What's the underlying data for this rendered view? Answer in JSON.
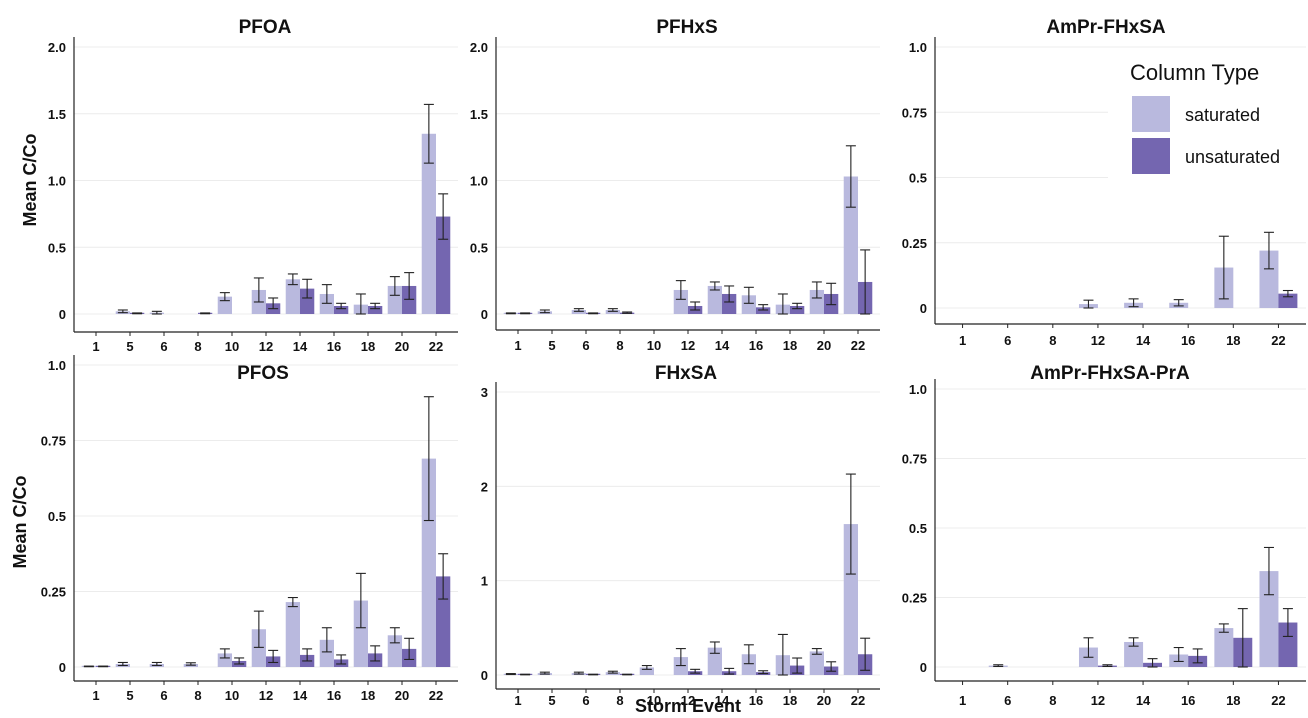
{
  "axis_labels": {
    "y": "Mean C/Co",
    "x": "Storm Event"
  },
  "colors": {
    "saturated": "#b9b9de",
    "unsaturated": "#7466b0",
    "grid": "#ececec",
    "axis": "#222222"
  },
  "legend": {
    "title": "Column Type",
    "placement": "top-right",
    "entries": [
      {
        "key": "saturated",
        "label": "saturated"
      },
      {
        "key": "unsaturated",
        "label": "unsaturated"
      }
    ]
  },
  "chart_data": [
    {
      "type": "bar",
      "title": "PFOA",
      "categories": [
        "1",
        "5",
        "6",
        "8",
        "10",
        "12",
        "14",
        "16",
        "18",
        "20",
        "22"
      ],
      "ylim": [
        0,
        2.0
      ],
      "yticks": [
        "0",
        "0.5",
        "1.0",
        "1.5",
        "2.0"
      ],
      "ytick_values": [
        0,
        0.5,
        1.0,
        1.5,
        2.0
      ],
      "grid": true,
      "series": [
        {
          "name": "saturated",
          "values": [
            null,
            0.02,
            0.01,
            null,
            0.13,
            0.18,
            0.26,
            0.15,
            0.07,
            0.21,
            1.35
          ],
          "err": [
            null,
            0.01,
            0.01,
            null,
            0.03,
            0.09,
            0.04,
            0.07,
            0.08,
            0.07,
            0.22
          ]
        },
        {
          "name": "unsaturated",
          "values": [
            null,
            0.005,
            null,
            0.005,
            null,
            0.08,
            0.19,
            0.06,
            0.06,
            0.21,
            0.73
          ],
          "err": [
            null,
            0.003,
            null,
            0.003,
            null,
            0.04,
            0.07,
            0.02,
            0.02,
            0.1,
            0.17
          ]
        }
      ]
    },
    {
      "type": "bar",
      "title": "PFHxS",
      "categories": [
        "1",
        "5",
        "6",
        "8",
        "10",
        "12",
        "14",
        "16",
        "18",
        "20",
        "22"
      ],
      "ylim": [
        0,
        2.0
      ],
      "yticks": [
        "0",
        "0.5",
        "1.0",
        "1.5",
        "2.0"
      ],
      "ytick_values": [
        0,
        0.5,
        1.0,
        1.5,
        2.0
      ],
      "grid": true,
      "series": [
        {
          "name": "saturated",
          "values": [
            0.005,
            0.02,
            0.03,
            0.03,
            null,
            0.18,
            0.21,
            0.14,
            0.07,
            0.18,
            1.03
          ],
          "err": [
            0.003,
            0.01,
            0.01,
            0.01,
            null,
            0.07,
            0.03,
            0.06,
            0.08,
            0.06,
            0.23
          ]
        },
        {
          "name": "unsaturated",
          "values": [
            0.005,
            null,
            0.005,
            0.01,
            null,
            0.06,
            0.15,
            0.05,
            0.06,
            0.15,
            0.24
          ],
          "err": [
            0.003,
            null,
            0.003,
            0.005,
            null,
            0.03,
            0.06,
            0.02,
            0.02,
            0.08,
            0.24
          ]
        }
      ]
    },
    {
      "type": "bar",
      "title": "AmPr-FHxSA",
      "categories": [
        "1",
        "6",
        "8",
        "12",
        "14",
        "16",
        "18",
        "22"
      ],
      "ylim": [
        0,
        1.0
      ],
      "yticks": [
        "0",
        "0.25",
        "0.5",
        "0.75",
        "1.0"
      ],
      "ytick_values": [
        0,
        0.25,
        0.5,
        0.75,
        1.0
      ],
      "grid": true,
      "series": [
        {
          "name": "saturated",
          "values": [
            null,
            null,
            null,
            0.015,
            0.02,
            0.02,
            0.155,
            0.22
          ],
          "err": [
            null,
            null,
            null,
            0.015,
            0.015,
            0.012,
            0.12,
            0.07
          ]
        },
        {
          "name": "unsaturated",
          "values": [
            null,
            null,
            null,
            null,
            null,
            null,
            null,
            0.055
          ],
          "err": [
            null,
            null,
            null,
            null,
            null,
            null,
            null,
            0.012
          ]
        }
      ]
    },
    {
      "type": "bar",
      "title": "PFOS",
      "categories": [
        "1",
        "5",
        "6",
        "8",
        "10",
        "12",
        "14",
        "16",
        "18",
        "20",
        "22"
      ],
      "ylim": [
        0,
        1.0
      ],
      "yticks": [
        "0",
        "0.25",
        "0.5",
        "0.75",
        "1.0"
      ],
      "ytick_values": [
        0,
        0.25,
        0.5,
        0.75,
        1.0
      ],
      "grid": true,
      "series": [
        {
          "name": "saturated",
          "values": [
            0.002,
            0.01,
            0.01,
            0.01,
            0.045,
            0.125,
            0.215,
            0.09,
            0.22,
            0.105,
            0.69
          ],
          "err": [
            0.001,
            0.005,
            0.005,
            0.004,
            0.015,
            0.06,
            0.015,
            0.04,
            0.09,
            0.025,
            0.205
          ]
        },
        {
          "name": "unsaturated",
          "values": [
            0.002,
            null,
            null,
            null,
            0.02,
            0.035,
            0.04,
            0.025,
            0.045,
            0.06,
            0.3
          ],
          "err": [
            0.001,
            null,
            null,
            null,
            0.01,
            0.02,
            0.02,
            0.015,
            0.025,
            0.035,
            0.075
          ]
        }
      ]
    },
    {
      "type": "bar",
      "title": "FHxSA",
      "categories": [
        "1",
        "5",
        "6",
        "8",
        "10",
        "12",
        "14",
        "16",
        "18",
        "20",
        "22"
      ],
      "ylim": [
        0,
        3.0
      ],
      "yticks": [
        "0",
        "1",
        "2",
        "3"
      ],
      "ytick_values": [
        0,
        1,
        2,
        3
      ],
      "grid": true,
      "series": [
        {
          "name": "saturated",
          "values": [
            0.01,
            0.02,
            0.02,
            0.03,
            0.08,
            0.19,
            0.29,
            0.22,
            0.21,
            0.25,
            1.6
          ],
          "err": [
            0.005,
            0.01,
            0.01,
            0.01,
            0.02,
            0.09,
            0.06,
            0.1,
            0.22,
            0.03,
            0.53
          ]
        },
        {
          "name": "unsaturated",
          "values": [
            0.005,
            null,
            0.005,
            0.005,
            null,
            0.04,
            0.04,
            0.03,
            0.1,
            0.09,
            0.22
          ],
          "err": [
            0.003,
            null,
            0.003,
            0.003,
            null,
            0.02,
            0.03,
            0.015,
            0.08,
            0.05,
            0.17
          ]
        }
      ]
    },
    {
      "type": "bar",
      "title": "AmPr-FHxSA-PrA",
      "categories": [
        "1",
        "6",
        "8",
        "12",
        "14",
        "16",
        "18",
        "22"
      ],
      "ylim": [
        0,
        1.0
      ],
      "yticks": [
        "0",
        "0.25",
        "0.5",
        "0.75",
        "1.0"
      ],
      "ytick_values": [
        0,
        0.25,
        0.5,
        0.75,
        1.0
      ],
      "grid": true,
      "series": [
        {
          "name": "saturated",
          "values": [
            null,
            0.005,
            null,
            0.07,
            0.09,
            0.045,
            0.14,
            0.345
          ],
          "err": [
            null,
            0.003,
            null,
            0.035,
            0.015,
            0.025,
            0.015,
            0.085
          ]
        },
        {
          "name": "unsaturated",
          "values": [
            null,
            null,
            null,
            0.005,
            0.015,
            0.04,
            0.105,
            0.16
          ],
          "err": [
            null,
            null,
            null,
            0.003,
            0.015,
            0.025,
            0.105,
            0.05
          ]
        }
      ]
    }
  ]
}
